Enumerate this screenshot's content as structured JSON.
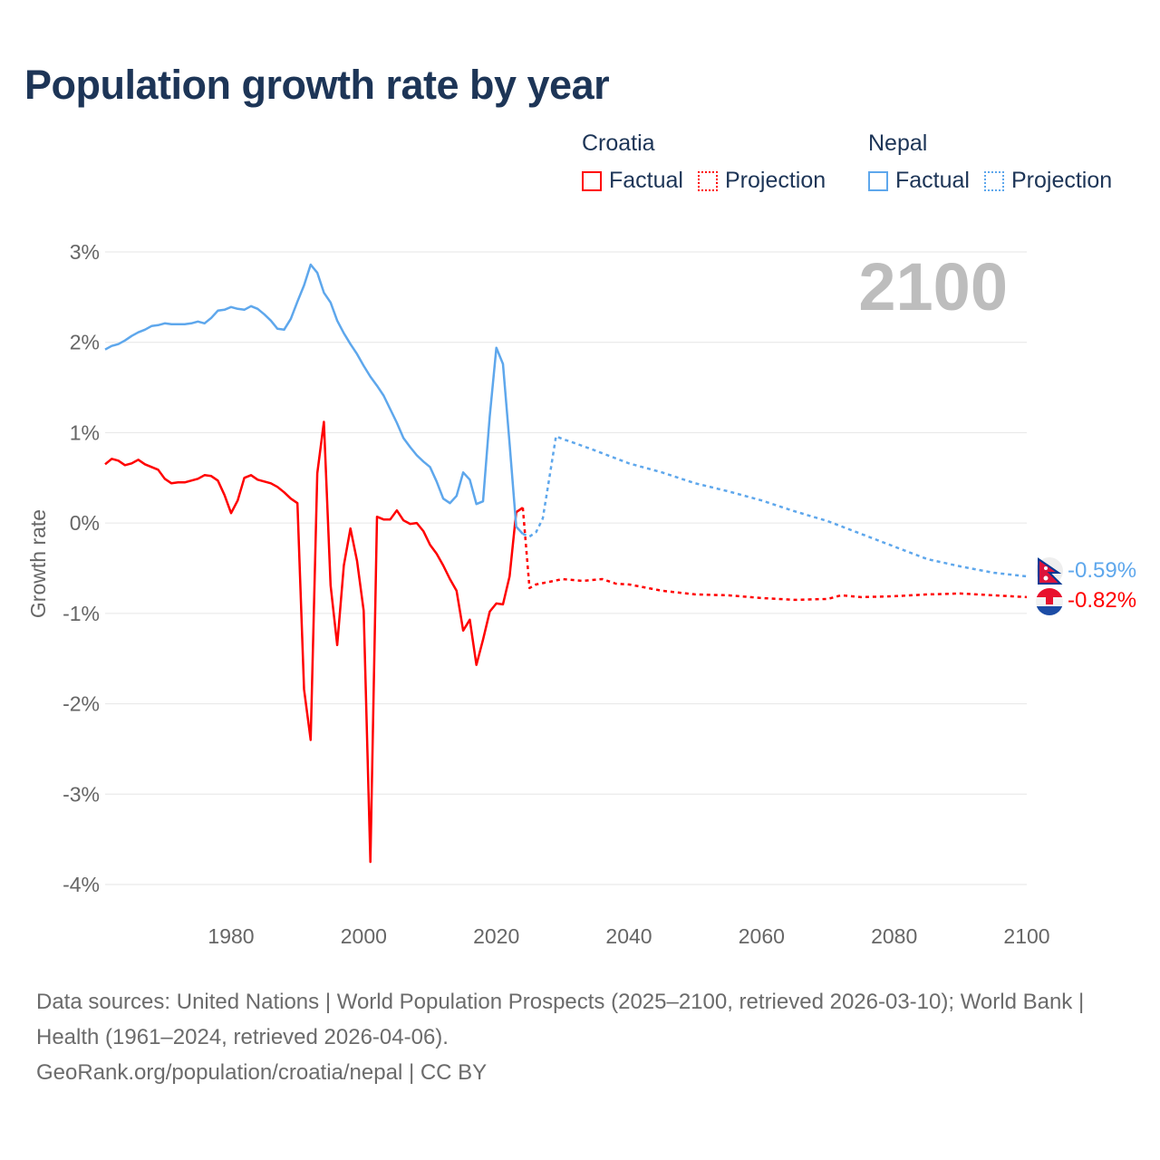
{
  "title": "Population growth rate by year",
  "legend": {
    "groups": [
      {
        "country": "Croatia",
        "color": "#ff0000",
        "factual_label": "Factual",
        "projection_label": "Projection"
      },
      {
        "country": "Nepal",
        "color": "#5ea7ec",
        "factual_label": "Factual",
        "projection_label": "Projection"
      }
    ]
  },
  "year_label": "2100",
  "end_labels": {
    "nepal": "-0.59%",
    "croatia": "-0.82%"
  },
  "chart_data": {
    "type": "line",
    "title": "Population growth rate by year",
    "xlabel": "",
    "ylabel": "Growth rate",
    "xlim": [
      1961,
      2100
    ],
    "ylim": [
      -4,
      3
    ],
    "x_ticks": [
      1980,
      2000,
      2020,
      2040,
      2060,
      2080,
      2100
    ],
    "x_tick_labels": [
      "1980",
      "2000",
      "2020",
      "2040",
      "2060",
      "2080",
      "2100"
    ],
    "y_ticks": [
      3,
      2,
      1,
      0,
      -1,
      -2,
      -3,
      -4
    ],
    "y_tick_labels": [
      "3%",
      "2%",
      "1%",
      "0%",
      "-1%",
      "-2%",
      "-3%",
      "-4%"
    ],
    "grid": true,
    "legend_position": "top-right",
    "series": [
      {
        "name": "Croatia Factual",
        "color": "#ff0000",
        "dashed": false,
        "x": [
          1961,
          1962,
          1963,
          1964,
          1965,
          1966,
          1967,
          1968,
          1969,
          1970,
          1971,
          1972,
          1973,
          1974,
          1975,
          1976,
          1977,
          1978,
          1979,
          1980,
          1981,
          1982,
          1983,
          1984,
          1985,
          1986,
          1987,
          1988,
          1989,
          1990,
          1991,
          1992,
          1993,
          1994,
          1995,
          1996,
          1997,
          1998,
          1999,
          2000,
          2001,
          2002,
          2003,
          2004,
          2005,
          2006,
          2007,
          2008,
          2009,
          2010,
          2011,
          2012,
          2013,
          2014,
          2015,
          2016,
          2017,
          2018,
          2019,
          2020,
          2021,
          2022,
          2023,
          2024
        ],
        "y": [
          0.65,
          0.71,
          0.69,
          0.64,
          0.66,
          0.7,
          0.65,
          0.62,
          0.59,
          0.49,
          0.44,
          0.45,
          0.45,
          0.47,
          0.49,
          0.53,
          0.52,
          0.47,
          0.31,
          0.11,
          0.25,
          0.5,
          0.53,
          0.48,
          0.46,
          0.44,
          0.4,
          0.34,
          0.27,
          0.22,
          -1.84,
          -2.4,
          0.55,
          1.12,
          -0.69,
          -1.35,
          -0.47,
          -0.06,
          -0.42,
          -0.97,
          -3.75,
          0.07,
          0.04,
          0.04,
          0.14,
          0.03,
          -0.01,
          0.0,
          -0.09,
          -0.24,
          -0.34,
          -0.47,
          -0.62,
          -0.75,
          -1.19,
          -1.07,
          -1.57,
          -1.29,
          -0.98,
          -0.89,
          -0.9,
          -0.59,
          0.12,
          0.17
        ]
      },
      {
        "name": "Croatia Projection",
        "color": "#ff0000",
        "dashed": true,
        "x": [
          2024,
          2025,
          2026,
          2028,
          2030,
          2033,
          2036,
          2038,
          2040,
          2045,
          2050,
          2055,
          2060,
          2065,
          2070,
          2072,
          2075,
          2080,
          2085,
          2090,
          2095,
          2100
        ],
        "y": [
          0.17,
          -0.72,
          -0.68,
          -0.65,
          -0.62,
          -0.64,
          -0.62,
          -0.67,
          -0.68,
          -0.75,
          -0.79,
          -0.8,
          -0.83,
          -0.85,
          -0.84,
          -0.8,
          -0.82,
          -0.81,
          -0.79,
          -0.78,
          -0.8,
          -0.82
        ]
      },
      {
        "name": "Nepal Factual",
        "color": "#5ea7ec",
        "dashed": false,
        "x": [
          1961,
          1962,
          1963,
          1964,
          1965,
          1966,
          1967,
          1968,
          1969,
          1970,
          1971,
          1972,
          1973,
          1974,
          1975,
          1976,
          1977,
          1978,
          1979,
          1980,
          1981,
          1982,
          1983,
          1984,
          1985,
          1986,
          1987,
          1988,
          1989,
          1990,
          1991,
          1992,
          1993,
          1994,
          1995,
          1996,
          1997,
          1998,
          1999,
          2000,
          2001,
          2002,
          2003,
          2004,
          2005,
          2006,
          2007,
          2008,
          2009,
          2010,
          2011,
          2012,
          2013,
          2014,
          2015,
          2016,
          2017,
          2018,
          2019,
          2020,
          2021,
          2022,
          2023,
          2024
        ],
        "y": [
          1.92,
          1.96,
          1.98,
          2.02,
          2.07,
          2.11,
          2.14,
          2.18,
          2.19,
          2.21,
          2.2,
          2.2,
          2.2,
          2.21,
          2.23,
          2.21,
          2.27,
          2.35,
          2.36,
          2.39,
          2.37,
          2.36,
          2.4,
          2.37,
          2.31,
          2.24,
          2.15,
          2.14,
          2.26,
          2.45,
          2.63,
          2.86,
          2.77,
          2.55,
          2.44,
          2.24,
          2.1,
          1.98,
          1.87,
          1.74,
          1.62,
          1.52,
          1.41,
          1.26,
          1.11,
          0.94,
          0.84,
          0.75,
          0.68,
          0.62,
          0.46,
          0.27,
          0.22,
          0.3,
          0.56,
          0.48,
          0.21,
          0.24,
          1.18,
          1.94,
          1.76,
          0.88,
          -0.04,
          -0.12
        ]
      },
      {
        "name": "Nepal Projection",
        "color": "#5ea7ec",
        "dashed": true,
        "x": [
          2024,
          2025,
          2026,
          2027,
          2028,
          2029,
          2030,
          2032,
          2035,
          2040,
          2045,
          2050,
          2055,
          2060,
          2065,
          2070,
          2075,
          2080,
          2085,
          2090,
          2095,
          2100
        ],
        "y": [
          -0.12,
          -0.15,
          -0.1,
          0.05,
          0.5,
          0.96,
          0.93,
          0.88,
          0.8,
          0.66,
          0.56,
          0.44,
          0.35,
          0.25,
          0.13,
          0.02,
          -0.12,
          -0.26,
          -0.4,
          -0.48,
          -0.55,
          -0.59
        ]
      }
    ]
  },
  "footer": {
    "sources": "Data sources: United Nations | World Population Prospects (2025–2100, retrieved 2026-03-10); World Bank | Health (1961–2024, retrieved 2026-04-06).",
    "credit": "GeoRank.org/population/croatia/nepal | CC BY"
  }
}
